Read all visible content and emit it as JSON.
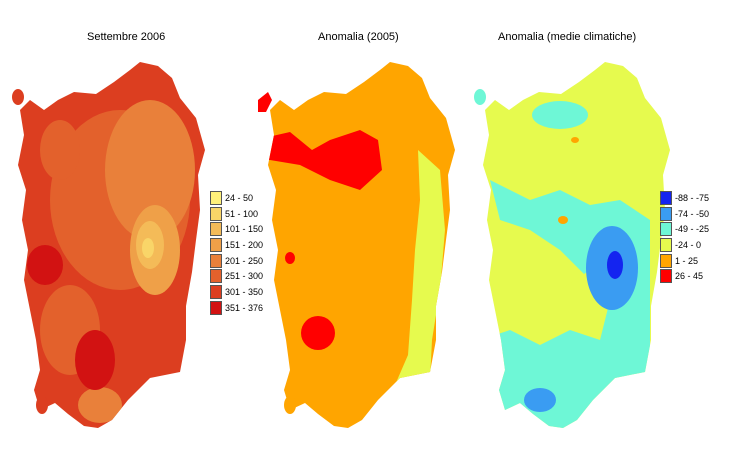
{
  "maps": [
    {
      "id": "september-2006",
      "title": "Settembre 2006"
    },
    {
      "id": "anomaly-2005",
      "title": "Anomalia (2005)"
    },
    {
      "id": "anomaly-climate-normals",
      "title": "Anomalia (medie climatiche)"
    }
  ],
  "legend_precipitation": [
    {
      "label": "24 - 50",
      "color": "#fff07a"
    },
    {
      "label": "51 - 100",
      "color": "#f9d568"
    },
    {
      "label": "101 - 150",
      "color": "#f4bb58"
    },
    {
      "label": "151 - 200",
      "color": "#efa048"
    },
    {
      "label": "201 - 250",
      "color": "#e9803a"
    },
    {
      "label": "251 - 300",
      "color": "#e3612c"
    },
    {
      "label": "301 - 350",
      "color": "#dc3e20"
    },
    {
      "label": "351 - 376",
      "color": "#d21212"
    }
  ],
  "legend_anomaly": [
    {
      "label": "-88 - -75",
      "color": "#1424f0"
    },
    {
      "label": "-74 - -50",
      "color": "#3a9cf2"
    },
    {
      "label": "-49 - -25",
      "color": "#6ef7d6"
    },
    {
      "label": "-24 - 0",
      "color": "#e6fa4e"
    },
    {
      "label": "1 - 25",
      "color": "#ffa500"
    },
    {
      "label": "26 - 45",
      "color": "#ff0000"
    }
  ]
}
